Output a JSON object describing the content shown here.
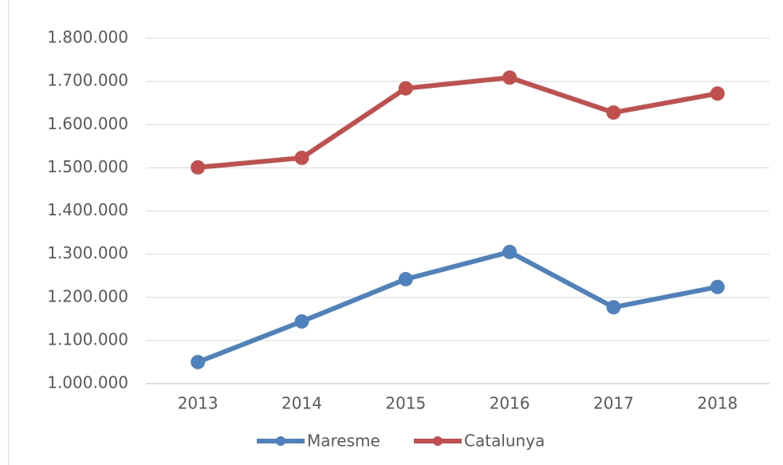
{
  "chart_data": {
    "type": "line",
    "categories": [
      "2013",
      "2014",
      "2015",
      "2016",
      "2017",
      "2018"
    ],
    "series": [
      {
        "name": "Maresme",
        "color": "#4f81bd",
        "values": [
          1050000,
          1144000,
          1242000,
          1305000,
          1177000,
          1224000
        ]
      },
      {
        "name": "Catalunya",
        "color": "#c0504d",
        "values": [
          1501000,
          1523000,
          1684000,
          1709000,
          1628000,
          1672000
        ]
      }
    ],
    "ylim": [
      1000000,
      1800000
    ],
    "yticks": [
      {
        "value": 1000000,
        "label": "1.000.000"
      },
      {
        "value": 1100000,
        "label": "1.100.000"
      },
      {
        "value": 1200000,
        "label": "1.200.000"
      },
      {
        "value": 1300000,
        "label": "1.300.000"
      },
      {
        "value": 1400000,
        "label": "1.400.000"
      },
      {
        "value": 1500000,
        "label": "1.500.000"
      },
      {
        "value": 1600000,
        "label": "1.600.000"
      },
      {
        "value": 1700000,
        "label": "1.700.000"
      },
      {
        "value": 1800000,
        "label": "1.800.000"
      }
    ],
    "grid": true,
    "legend": "bottom"
  }
}
